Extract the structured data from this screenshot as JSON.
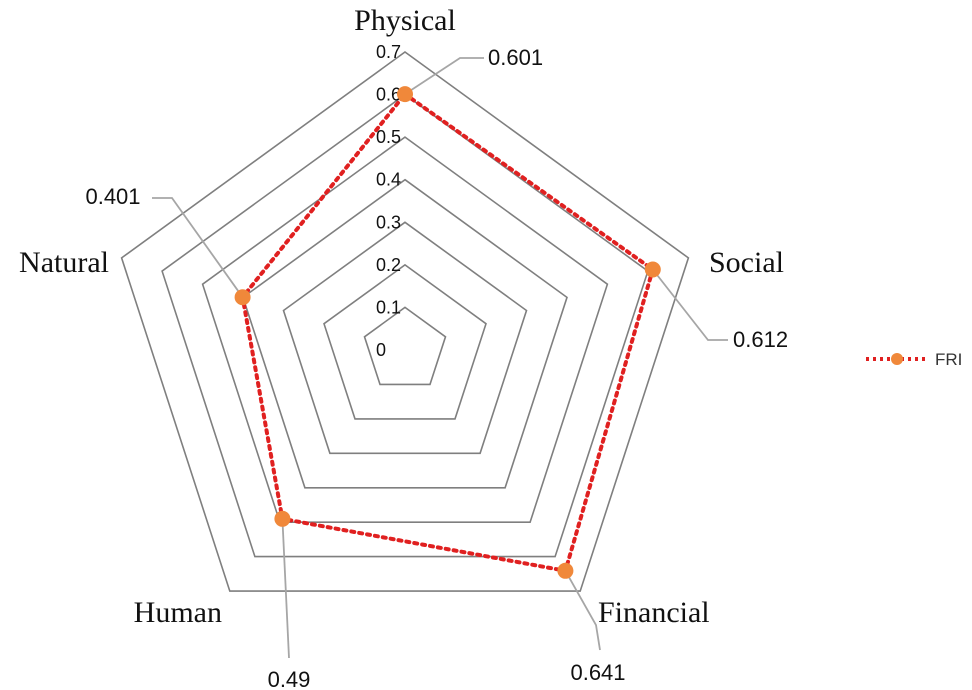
{
  "chart_data": {
    "type": "radar",
    "categories": [
      "Physical",
      "Social",
      "Financial",
      "Human",
      "Natural"
    ],
    "series": [
      {
        "name": "FRI",
        "values": [
          0.601,
          0.612,
          0.641,
          0.49,
          0.401
        ]
      }
    ],
    "data_labels": [
      "0.601",
      "0.612",
      "0.641",
      "0.49",
      "0.401"
    ],
    "radial_ticks": [
      "0",
      "0.1",
      "0.2",
      "0.3",
      "0.4",
      "0.5",
      "0.6",
      "0.7"
    ],
    "range": [
      0,
      0.7
    ],
    "grid": true,
    "legend_position": "right",
    "colors": {
      "line": "#e02020",
      "marker": "#f0883a",
      "grid": "#7f7f7f",
      "leader": "#a6a6a6"
    }
  }
}
